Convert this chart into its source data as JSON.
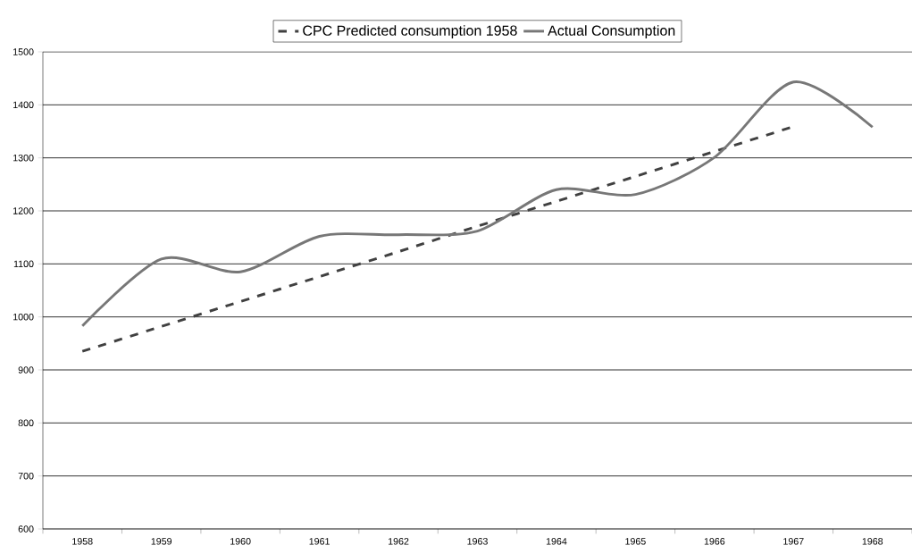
{
  "chart_data": {
    "type": "line",
    "categories": [
      "1958",
      "1959",
      "1960",
      "1961",
      "1962",
      "1963",
      "1964",
      "1965",
      "1966",
      "1967",
      "1968"
    ],
    "series": [
      {
        "name": "CPC Predicted consumption 1958",
        "color": "#404040",
        "line_style": "dashed",
        "values": [
          935,
          982,
          1029,
          1076,
          1123,
          1171,
          1218,
          1265,
          1312,
          1359,
          null
        ]
      },
      {
        "name": "Actual Consumption",
        "color": "#777777",
        "line_style": "solid",
        "values": [
          983,
          1109,
          1085,
          1152,
          1155,
          1162,
          1240,
          1231,
          1301,
          1443,
          1358
        ]
      }
    ],
    "ylim": [
      600,
      1500
    ],
    "yticks": [
      600,
      700,
      800,
      900,
      1000,
      1100,
      1200,
      1300,
      1400,
      1500
    ],
    "grid": "y",
    "legend": "top",
    "marker": "none"
  }
}
